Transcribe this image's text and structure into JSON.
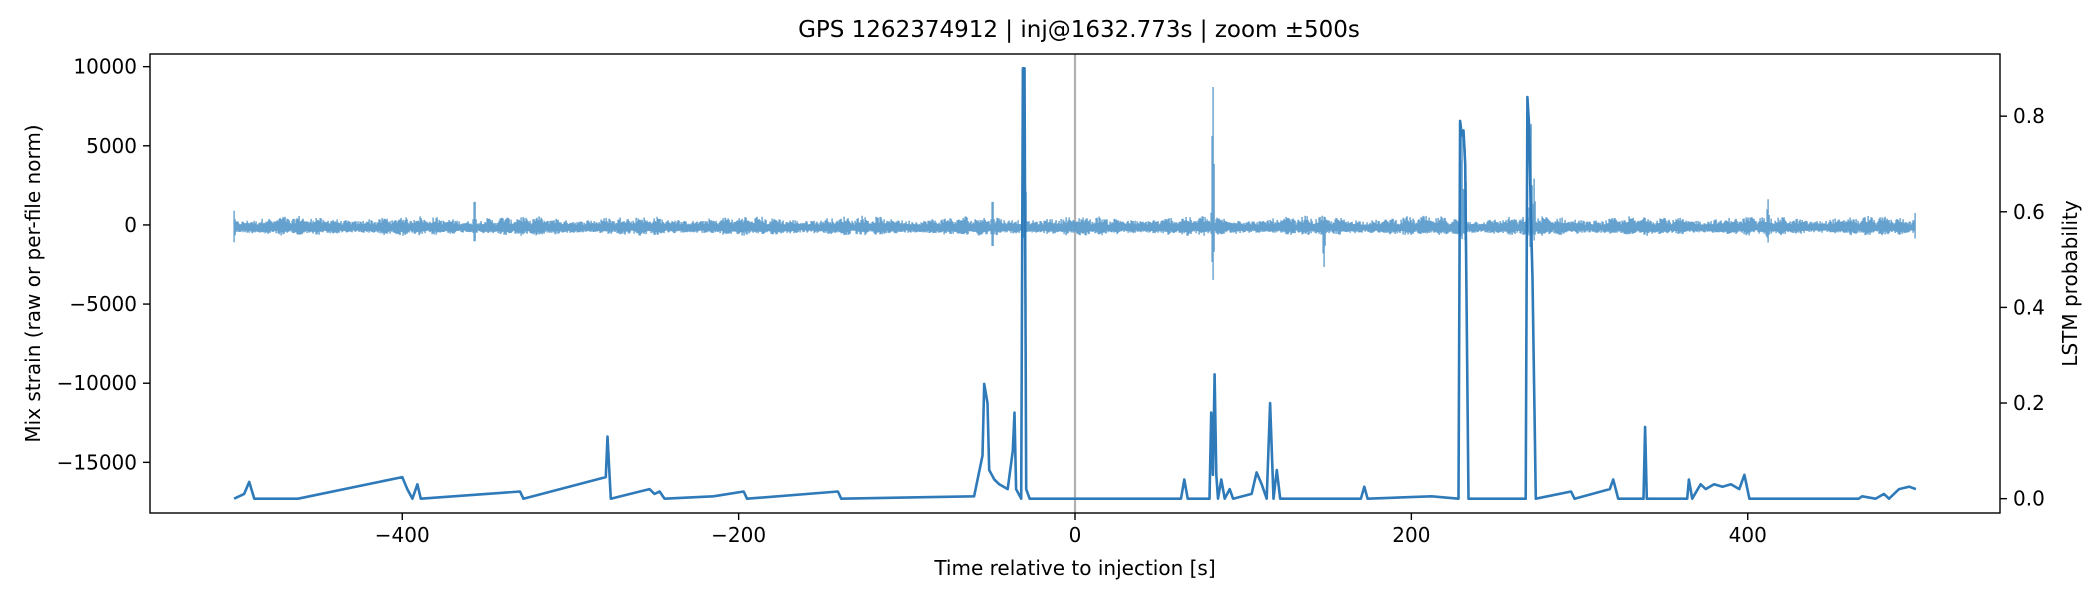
{
  "chart_data": {
    "type": "line",
    "title": "GPS 1262374912 | inj@1632.773s | zoom ±500s",
    "xlabel": "Time relative to injection [s]",
    "ylabel": "Mix strain (raw or per-file norm)",
    "y2label": "LSTM probability",
    "xlim": [
      -550,
      550
    ],
    "ylim": [
      -18200,
      10800
    ],
    "y2lim": [
      -0.03,
      0.93
    ],
    "xticks": [
      -400,
      -200,
      0,
      200,
      400
    ],
    "xtick_labels": [
      "−400",
      "−200",
      "0",
      "200",
      "400"
    ],
    "yticks": [
      10000,
      5000,
      0,
      -5000,
      -10000,
      -15000
    ],
    "ytick_labels": [
      "10000",
      "5000",
      "0",
      "−5000",
      "−10000",
      "−15000"
    ],
    "y2ticks": [
      0.8,
      0.6,
      0.4,
      0.2,
      0.0
    ],
    "y2tick_labels": [
      "0.8",
      "0.6",
      "0.4",
      "0.2",
      "0.0"
    ],
    "grid": false,
    "injection_marker_x": 0,
    "series": [
      {
        "role": "strain",
        "axis": "left",
        "color": "#5c9ccc",
        "x_range": [
          -500,
          500
        ],
        "baseline": -200,
        "noise_band": [
          -700,
          600
        ],
        "features": [
          {
            "x": -500,
            "min": -1100,
            "max": 900
          },
          {
            "x": -357,
            "min": -1300,
            "max": 2000
          },
          {
            "x": -49,
            "min": -1700,
            "max": 2000
          },
          {
            "x": -30,
            "min": -1000,
            "max": 9600
          },
          {
            "x": 82,
            "min": -3800,
            "max": 9600
          },
          {
            "x": 148,
            "min": -2900,
            "max": 600
          },
          {
            "x": 230,
            "min": -1000,
            "max": 6500
          },
          {
            "x": 232,
            "min": -1000,
            "max": 5100
          },
          {
            "x": 271,
            "min": -2000,
            "max": 7600
          },
          {
            "x": 273,
            "min": -1000,
            "max": 3000
          },
          {
            "x": 412,
            "min": -1200,
            "max": 1800
          },
          {
            "x": 500,
            "min": -1300,
            "max": 1400
          }
        ]
      },
      {
        "role": "lstm",
        "axis": "right",
        "color": "#2f7ab9",
        "baseline": 0.0,
        "points": [
          [
            -500,
            0.0
          ],
          [
            -494,
            0.01
          ],
          [
            -491,
            0.035
          ],
          [
            -488,
            0.0
          ],
          [
            -462,
            0.0
          ],
          [
            -400,
            0.045
          ],
          [
            -397,
            0.02
          ],
          [
            -394,
            0.0
          ],
          [
            -391,
            0.03
          ],
          [
            -389,
            0.0
          ],
          [
            -330,
            0.015
          ],
          [
            -328,
            0.0
          ],
          [
            -279,
            0.045
          ],
          [
            -278,
            0.13
          ],
          [
            -276,
            0.0
          ],
          [
            -253,
            0.02
          ],
          [
            -250,
            0.01
          ],
          [
            -247,
            0.015
          ],
          [
            -244,
            0.0
          ],
          [
            -215,
            0.005
          ],
          [
            -197,
            0.015
          ],
          [
            -195,
            0.0
          ],
          [
            -141,
            0.015
          ],
          [
            -139,
            0.0
          ],
          [
            -60,
            0.005
          ],
          [
            -55,
            0.09
          ],
          [
            -54,
            0.24
          ],
          [
            -52,
            0.2
          ],
          [
            -51,
            0.06
          ],
          [
            -48,
            0.04
          ],
          [
            -45,
            0.03
          ],
          [
            -40,
            0.02
          ],
          [
            -37,
            0.1
          ],
          [
            -36,
            0.18
          ],
          [
            -35,
            0.02
          ],
          [
            -32,
            0.0
          ],
          [
            -31,
            0.9
          ],
          [
            -30,
            0.9
          ],
          [
            -29,
            0.02
          ],
          [
            -27,
            0.0
          ],
          [
            63,
            0.0
          ],
          [
            65,
            0.04
          ],
          [
            67,
            0.0
          ],
          [
            80,
            0.0
          ],
          [
            81,
            0.18
          ],
          [
            82,
            0.05
          ],
          [
            83,
            0.26
          ],
          [
            84,
            0.05
          ],
          [
            85,
            0.0
          ],
          [
            87,
            0.04
          ],
          [
            89,
            0.0
          ],
          [
            92,
            0.02
          ],
          [
            94,
            0.0
          ],
          [
            105,
            0.01
          ],
          [
            108,
            0.055
          ],
          [
            111,
            0.03
          ],
          [
            114,
            0.0
          ],
          [
            116,
            0.2
          ],
          [
            118,
            0.0
          ],
          [
            120,
            0.06
          ],
          [
            122,
            0.0
          ],
          [
            170,
            0.0
          ],
          [
            172,
            0.025
          ],
          [
            174,
            0.0
          ],
          [
            212,
            0.005
          ],
          [
            228,
            0.0
          ],
          [
            229,
            0.79
          ],
          [
            230,
            0.76
          ],
          [
            231,
            0.77
          ],
          [
            232,
            0.7
          ],
          [
            234,
            0.0
          ],
          [
            268,
            0.0
          ],
          [
            269,
            0.84
          ],
          [
            270,
            0.78
          ],
          [
            271,
            0.6
          ],
          [
            272,
            0.46
          ],
          [
            274,
            0.0
          ],
          [
            295,
            0.015
          ],
          [
            297,
            0.0
          ],
          [
            318,
            0.02
          ],
          [
            320,
            0.04
          ],
          [
            323,
            0.0
          ],
          [
            338,
            0.0
          ],
          [
            339,
            0.15
          ],
          [
            340,
            0.0
          ],
          [
            364,
            0.0
          ],
          [
            365,
            0.04
          ],
          [
            367,
            0.0
          ],
          [
            372,
            0.03
          ],
          [
            375,
            0.02
          ],
          [
            380,
            0.03
          ],
          [
            385,
            0.025
          ],
          [
            390,
            0.03
          ],
          [
            395,
            0.02
          ],
          [
            398,
            0.05
          ],
          [
            401,
            0.0
          ],
          [
            466,
            0.0
          ],
          [
            468,
            0.005
          ],
          [
            476,
            0.0
          ],
          [
            481,
            0.01
          ],
          [
            484,
            0.0
          ],
          [
            490,
            0.02
          ],
          [
            496,
            0.025
          ],
          [
            500,
            0.02
          ]
        ]
      }
    ]
  }
}
